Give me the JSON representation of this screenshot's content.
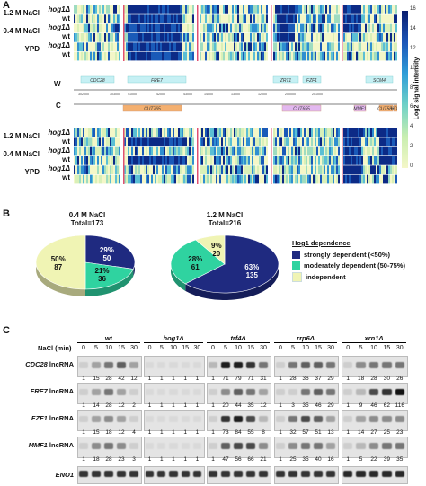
{
  "panelA": {
    "letter": "A",
    "track_w": "W",
    "track_c": "C",
    "rows_top": [
      {
        "cond": "1.2 M NaCl",
        "strain": "hog1Δ"
      },
      {
        "cond": "",
        "strain": "wt"
      },
      {
        "cond": "0.4 M NaCl",
        "strain": "hog1Δ"
      },
      {
        "cond": "",
        "strain": "wt"
      },
      {
        "cond": "YPD",
        "strain": "hog1Δ"
      },
      {
        "cond": "",
        "strain": "wt"
      }
    ],
    "genes_w": [
      "CDC28",
      "FRE7",
      "ZRT1",
      "FZF1",
      "SCM4"
    ],
    "genes_c": [
      "CUT765",
      "CUT655",
      "MMF1",
      "CUT583",
      "HOF"
    ],
    "coords": [
      "302000",
      "303000",
      "41000",
      "42000",
      "43000",
      "14000",
      "13000",
      "12000",
      "250000",
      "251000"
    ],
    "colorbar_label": "Log2 signal intensity",
    "colorbar_ticks": [
      "16",
      "14",
      "12",
      "10",
      "8",
      "6",
      "4",
      "2",
      "0"
    ]
  },
  "panelB": {
    "letter": "B",
    "pie1": {
      "title_line1": "0.4 M NaCl",
      "title_line2": "Total=173",
      "slices": [
        {
          "label_pct": "29%",
          "label_n": "50",
          "pct": 29,
          "color": "#1f2a80"
        },
        {
          "label_pct": "21%",
          "label_n": "36",
          "pct": 21,
          "color": "#2fd3a0"
        },
        {
          "label_pct": "50%",
          "label_n": "87",
          "pct": 50,
          "color": "#f0f4b4"
        }
      ]
    },
    "pie2": {
      "title_line1": "1.2 M NaCl",
      "title_line2": "Total=216",
      "slices": [
        {
          "label_pct": "63%",
          "label_n": "135",
          "pct": 63,
          "color": "#1f2a80"
        },
        {
          "label_pct": "28%",
          "label_n": "61",
          "pct": 28,
          "color": "#2fd3a0"
        },
        {
          "label_pct": "9%",
          "label_n": "20",
          "pct": 9,
          "color": "#f0f4b4"
        }
      ]
    },
    "legend_title": "Hog1 dependence",
    "legend": [
      {
        "label": "strongly dependent (<50%)",
        "color": "#1f2a80"
      },
      {
        "label": "moderately dependent (50-75%)",
        "color": "#2fd3a0"
      },
      {
        "label": "independent",
        "color": "#f0f4b4"
      }
    ]
  },
  "panelC": {
    "letter": "C",
    "nacl_label": "NaCl (min)",
    "strains": [
      "wt",
      "hog1Δ",
      "trf4Δ",
      "rrp6Δ",
      "xrn1Δ"
    ],
    "strain_italic": [
      false,
      true,
      true,
      true,
      true
    ],
    "times": [
      "0",
      "5",
      "10",
      "15",
      "30"
    ],
    "blots": [
      {
        "gene": "CDC28",
        "suffix": " lncRNA",
        "values": [
          [
            "1",
            "15",
            "28",
            "42",
            "12"
          ],
          [
            "1",
            "1",
            "1",
            "1",
            "1"
          ],
          [
            "1",
            "71",
            "79",
            "71",
            "31"
          ],
          [
            "1",
            "28",
            "36",
            "37",
            "29"
          ],
          [
            "1",
            "18",
            "28",
            "30",
            "26"
          ]
        ]
      },
      {
        "gene": "FRE7",
        "suffix": " lncRNA",
        "values": [
          [
            "1",
            "14",
            "28",
            "12",
            "2"
          ],
          [
            "1",
            "1",
            "1",
            "1",
            "1"
          ],
          [
            "1",
            "20",
            "44",
            "35",
            "12"
          ],
          [
            "1",
            "3",
            "35",
            "46",
            "29"
          ],
          [
            "1",
            "9",
            "46",
            "62",
            "116"
          ]
        ]
      },
      {
        "gene": "FZF1",
        "suffix": " lncRNA",
        "values": [
          [
            "1",
            "15",
            "18",
            "12",
            "4"
          ],
          [
            "1",
            "1",
            "1",
            "1",
            "1"
          ],
          [
            "1",
            "73",
            "84",
            "55",
            "8"
          ],
          [
            "1",
            "32",
            "57",
            "51",
            "13"
          ],
          [
            "1",
            "14",
            "27",
            "25",
            "23"
          ]
        ]
      },
      {
        "gene": "MMF1",
        "suffix": " lncRNA",
        "values": [
          [
            "1",
            "18",
            "28",
            "23",
            "3"
          ],
          [
            "1",
            "1",
            "1",
            "1",
            "1"
          ],
          [
            "1",
            "47",
            "56",
            "66",
            "21"
          ],
          [
            "1",
            "25",
            "35",
            "40",
            "16"
          ],
          [
            "1",
            "5",
            "22",
            "39",
            "35"
          ]
        ]
      },
      {
        "gene": "ENO1",
        "suffix": "",
        "values": null
      }
    ]
  }
}
